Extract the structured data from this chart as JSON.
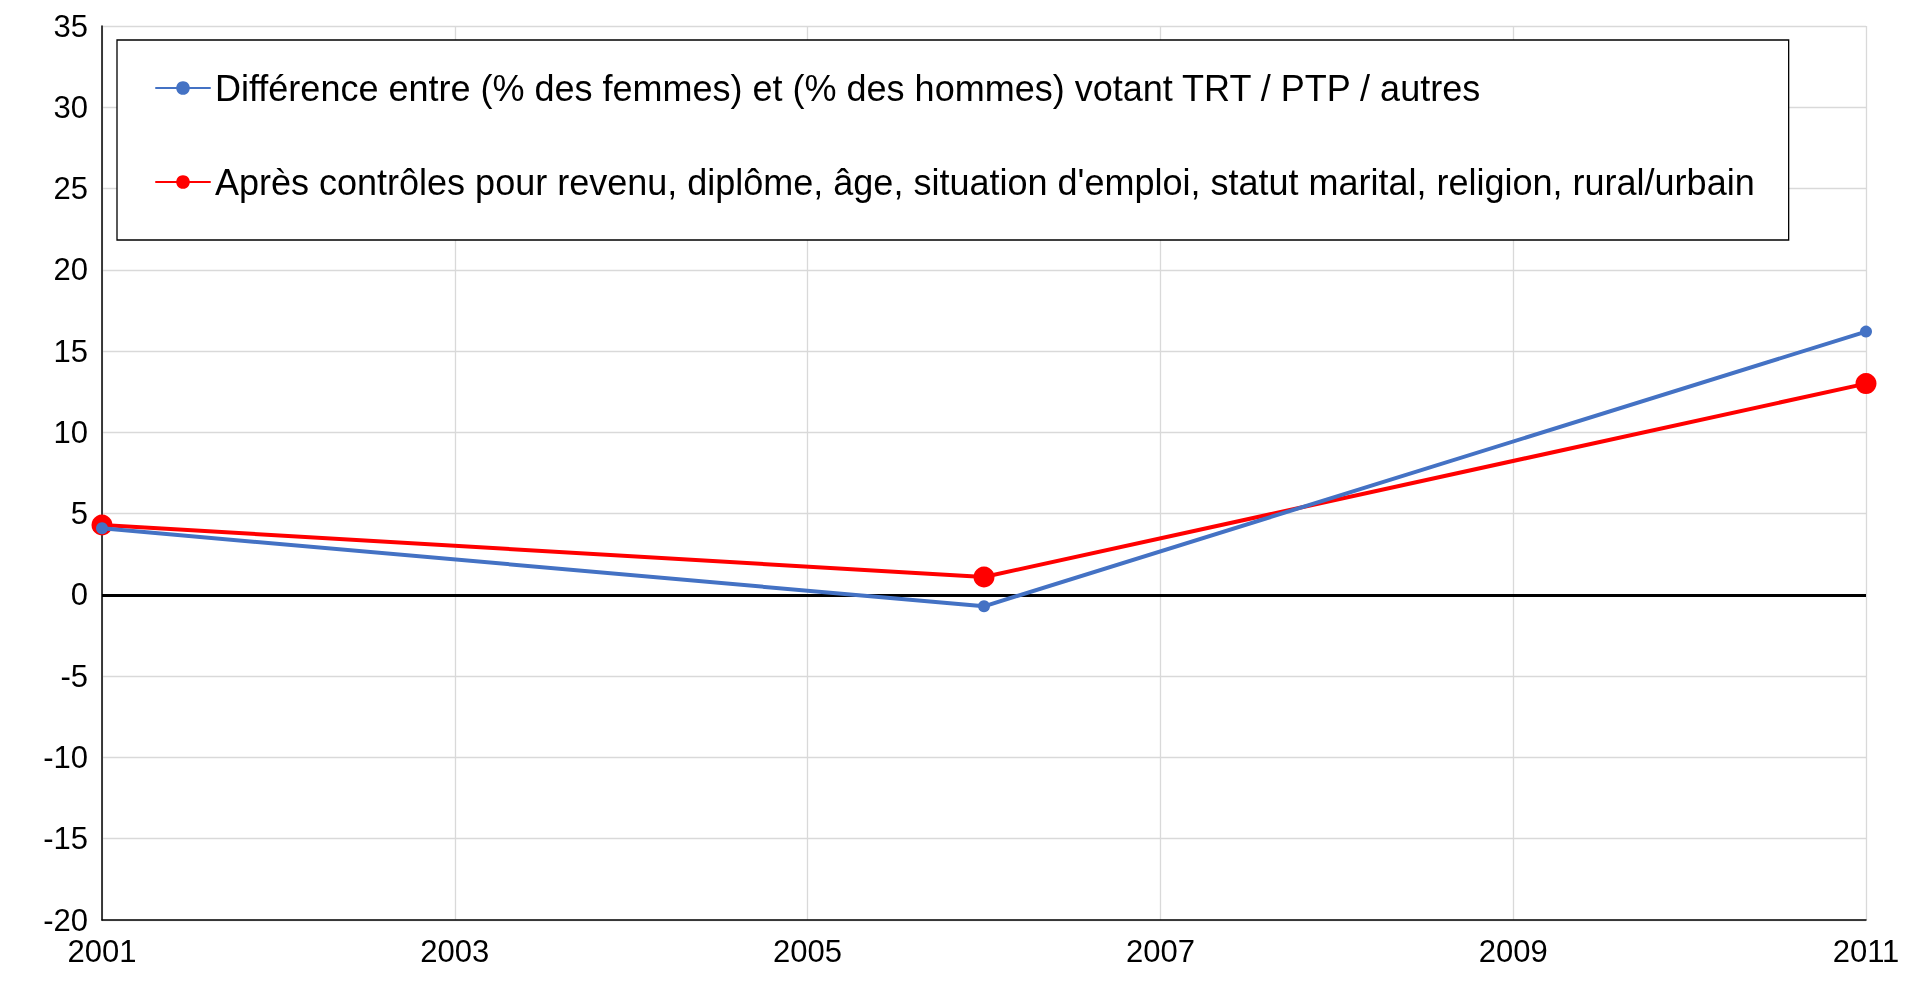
{
  "chart_data": {
    "type": "line",
    "x": [
      2001,
      2006,
      2011
    ],
    "series": [
      {
        "name": "Différence entre (% des femmes) et (% des hommes) votant TRT / PTP / autres",
        "color": "#4472c4",
        "values": [
          4.1,
          -0.7,
          16.2
        ]
      },
      {
        "name": "Après contrôles pour revenu, diplôme, âge, situation d'emploi, statut marital, religion, rural/urbain",
        "color": "#ff0000",
        "values": [
          4.3,
          1.1,
          13.0
        ]
      }
    ],
    "xlim": [
      2001,
      2011
    ],
    "xticks": [
      2001,
      2003,
      2005,
      2007,
      2009,
      2011
    ],
    "ylim": [
      -20,
      35
    ],
    "yticks": [
      -20,
      -15,
      -10,
      -5,
      0,
      5,
      10,
      15,
      20,
      25,
      30,
      35
    ],
    "ref_lines": [
      {
        "axis": "y",
        "value": 0,
        "color": "#000000"
      }
    ],
    "grid": true,
    "legend": "top",
    "marker": "circle",
    "line_style": "solid"
  }
}
